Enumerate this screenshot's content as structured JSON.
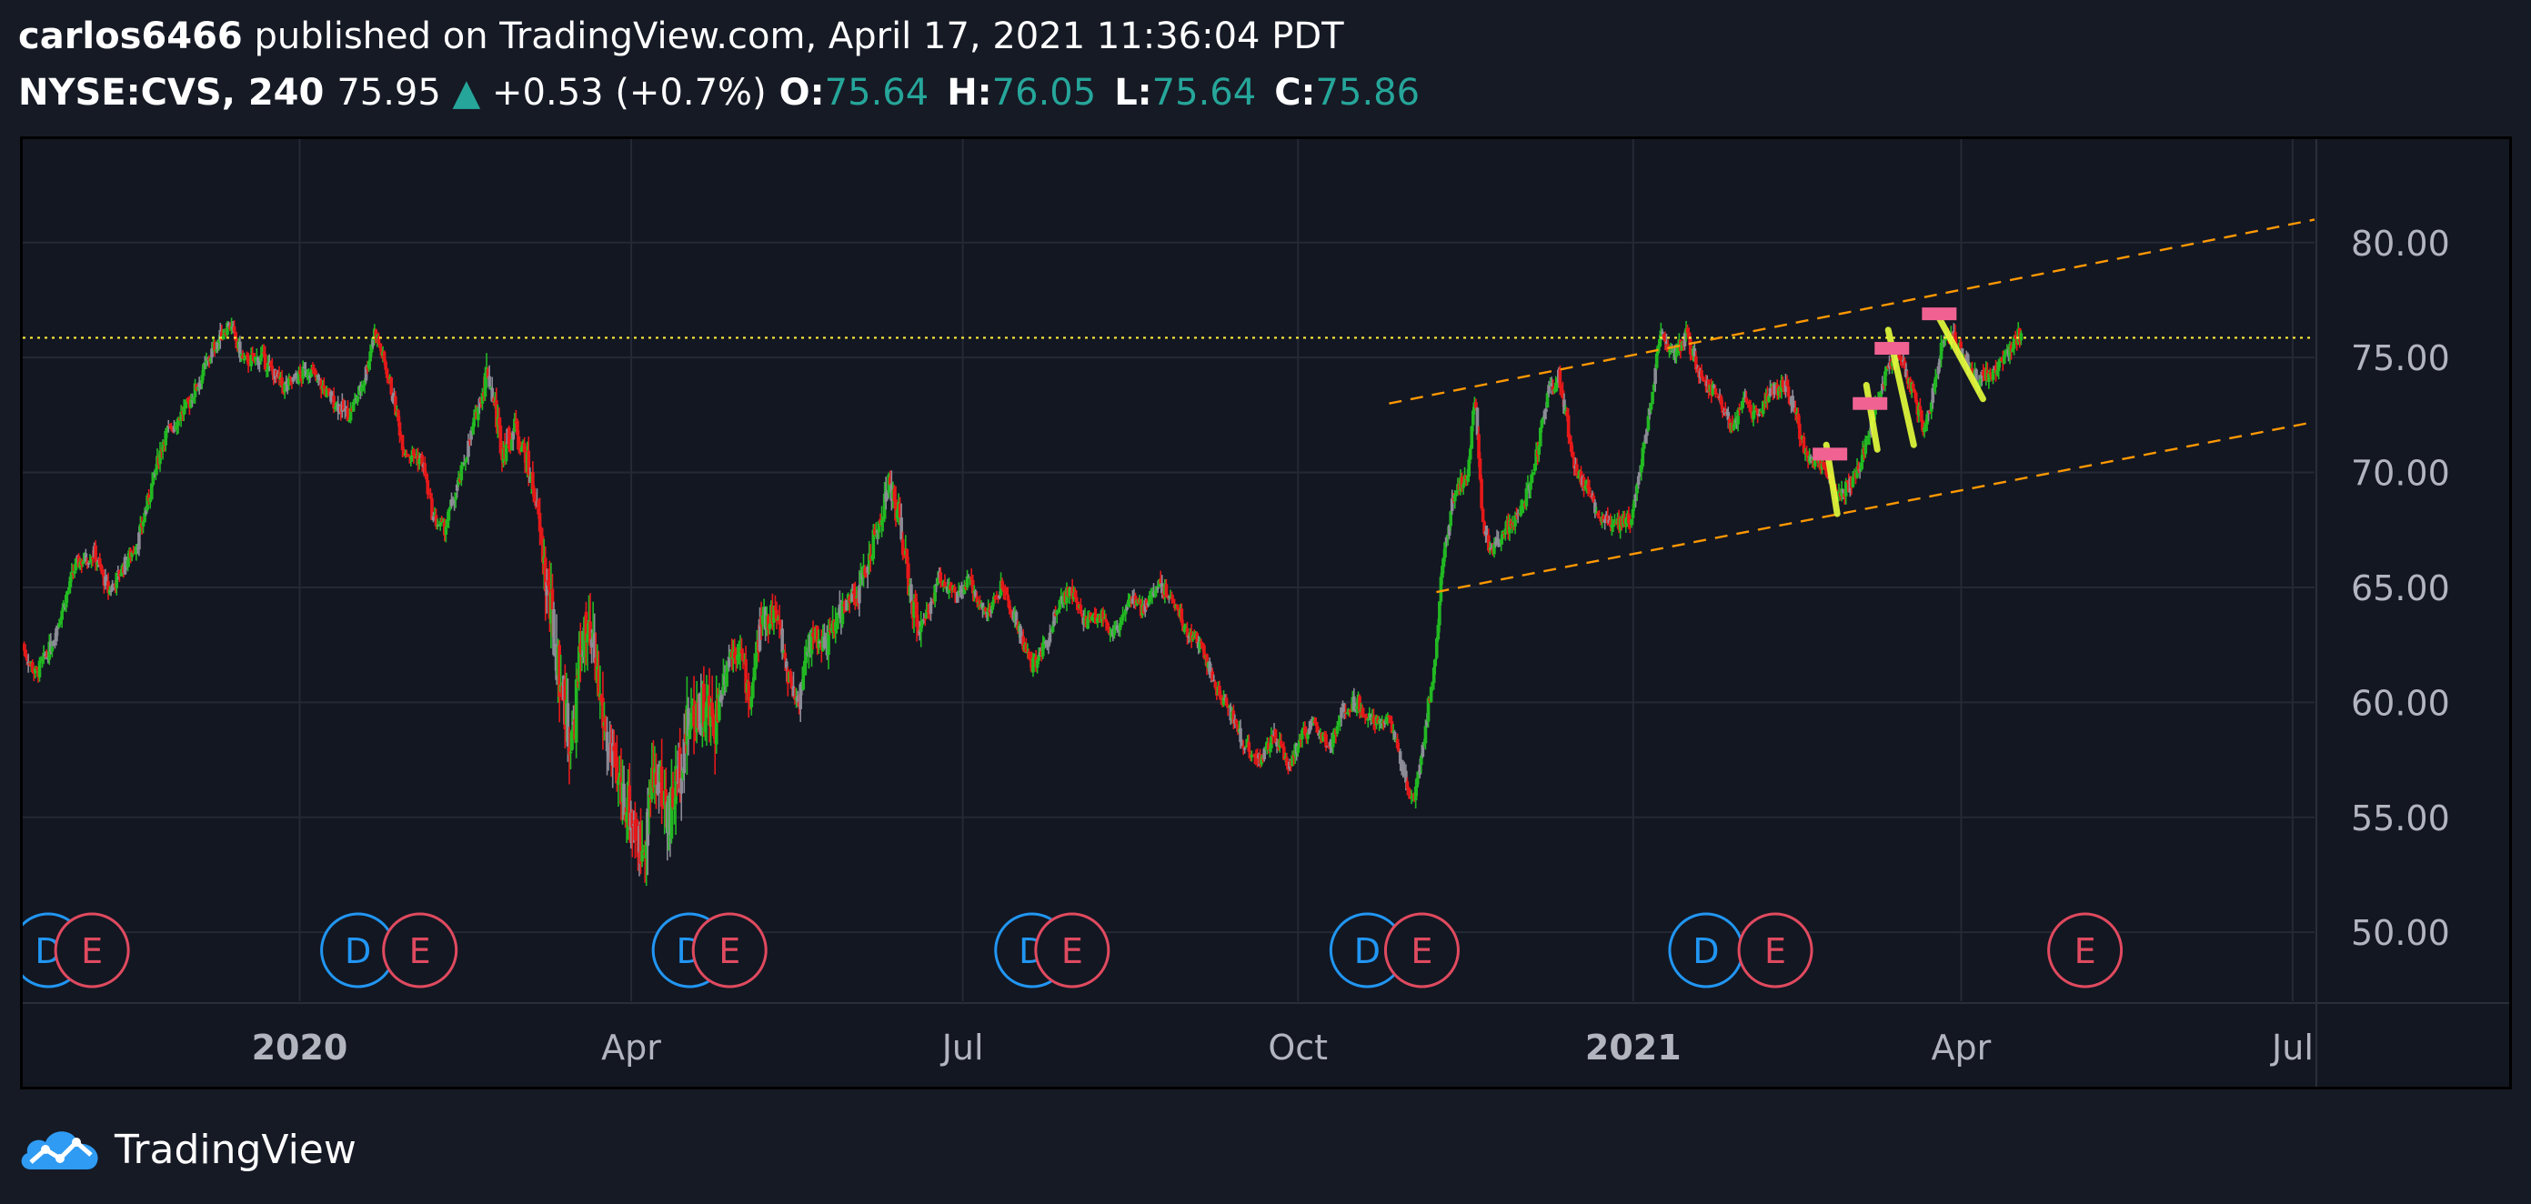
{
  "header": {
    "author": "carlos6466",
    "published_text": "published on TradingView.com, April 17, 2021 11:36:04 PDT",
    "symbol": "NYSE:CVS, 240",
    "last_price": "75.95",
    "change_arrow": "▲",
    "change": "+0.53 (+0.7%)",
    "open_label": "O:",
    "open_value": "75.64",
    "high_label": "H:",
    "high_value": "76.05",
    "low_label": "L:",
    "low_value": "75.64",
    "close_label": "C:",
    "close_value": "75.86"
  },
  "footer": {
    "brand": "TradingView",
    "logo_icon": "tradingview-cloud-logo-icon"
  },
  "colors": {
    "background": "#131722",
    "page_background": "#161a25",
    "up_candle": "#22b922",
    "down_candle": "#e61919",
    "grey_candle": "#8c8c96",
    "channel_line": "#ff9800",
    "level_line": "#ffeb3b",
    "teal_text": "#26a69a",
    "dividend_badge": "#2196f3",
    "earnings_badge": "#e04a5f",
    "pattern_marker": "#f06292",
    "pattern_stroke": "#e6ff3c"
  },
  "chart_data": {
    "type": "candlestick",
    "timeframe": "240",
    "ylim": [
      47.0,
      84.5
    ],
    "xlim": [
      "2019-10-17",
      "2021-07-07"
    ],
    "y_ticks": [
      "80.00",
      "75.00",
      "70.00",
      "65.00",
      "60.00",
      "55.00",
      "50.00"
    ],
    "y_tick_values": [
      80,
      75,
      70,
      65,
      60,
      55,
      50
    ],
    "x_ticks": [
      {
        "label": "2020",
        "date": "2020-01-01",
        "bold": true
      },
      {
        "label": "Apr",
        "date": "2020-04-01",
        "bold": false
      },
      {
        "label": "Jul",
        "date": "2020-07-01",
        "bold": false
      },
      {
        "label": "Oct",
        "date": "2020-10-01",
        "bold": false
      },
      {
        "label": "2021",
        "date": "2021-01-01",
        "bold": true
      },
      {
        "label": "Apr",
        "date": "2021-04-01",
        "bold": false
      },
      {
        "label": "Jul",
        "date": "2021-07-01",
        "bold": false
      }
    ],
    "price_path": [
      [
        "2019-10-17",
        62.5
      ],
      [
        "2019-10-21",
        61.2
      ],
      [
        "2019-10-25",
        62.4
      ],
      [
        "2019-11-01",
        66.0
      ],
      [
        "2019-11-06",
        66.5
      ],
      [
        "2019-11-10",
        64.8
      ],
      [
        "2019-11-18",
        67.0
      ],
      [
        "2019-11-25",
        71.5
      ],
      [
        "2019-12-02",
        73.0
      ],
      [
        "2019-12-09",
        75.5
      ],
      [
        "2019-12-13",
        76.5
      ],
      [
        "2019-12-17",
        74.8
      ],
      [
        "2019-12-22",
        75.0
      ],
      [
        "2019-12-28",
        73.7
      ],
      [
        "2020-01-04",
        74.5
      ],
      [
        "2020-01-10",
        73.2
      ],
      [
        "2020-01-15",
        72.5
      ],
      [
        "2020-01-19",
        74.0
      ],
      [
        "2020-01-22",
        76.2
      ],
      [
        "2020-01-26",
        74.0
      ],
      [
        "2020-01-30",
        71.0
      ],
      [
        "2020-02-04",
        70.5
      ],
      [
        "2020-02-07",
        68.0
      ],
      [
        "2020-02-10",
        67.5
      ],
      [
        "2020-02-14",
        69.5
      ],
      [
        "2020-02-18",
        72.0
      ],
      [
        "2020-02-22",
        74.5
      ],
      [
        "2020-02-26",
        71.0
      ],
      [
        "2020-03-01",
        72.0
      ],
      [
        "2020-03-06",
        69.0
      ],
      [
        "2020-03-10",
        64.0
      ],
      [
        "2020-03-13",
        61.0
      ],
      [
        "2020-03-16",
        58.0
      ],
      [
        "2020-03-19",
        63.0
      ],
      [
        "2020-03-22",
        62.0
      ],
      [
        "2020-03-25",
        59.0
      ],
      [
        "2020-03-28",
        56.5
      ],
      [
        "2020-04-01",
        55.5
      ],
      [
        "2020-04-04",
        53.5
      ],
      [
        "2020-04-08",
        57.0
      ],
      [
        "2020-04-12",
        55.0
      ],
      [
        "2020-04-16",
        58.5
      ],
      [
        "2020-04-20",
        60.0
      ],
      [
        "2020-04-24",
        59.0
      ],
      [
        "2020-04-28",
        62.0
      ],
      [
        "2020-05-01",
        62.5
      ],
      [
        "2020-05-04",
        60.0
      ],
      [
        "2020-05-07",
        63.5
      ],
      [
        "2020-05-11",
        64.0
      ],
      [
        "2020-05-14",
        61.5
      ],
      [
        "2020-05-17",
        60.0
      ],
      [
        "2020-05-21",
        63.0
      ],
      [
        "2020-05-25",
        62.5
      ],
      [
        "2020-05-29",
        64.0
      ],
      [
        "2020-06-02",
        64.5
      ],
      [
        "2020-06-05",
        66.0
      ],
      [
        "2020-06-08",
        67.5
      ],
      [
        "2020-06-11",
        69.5
      ],
      [
        "2020-06-14",
        68.0
      ],
      [
        "2020-06-17",
        64.5
      ],
      [
        "2020-06-20",
        63.0
      ],
      [
        "2020-06-25",
        65.5
      ],
      [
        "2020-06-30",
        64.5
      ],
      [
        "2020-07-03",
        65.3
      ],
      [
        "2020-07-08",
        63.8
      ],
      [
        "2020-07-12",
        65.0
      ],
      [
        "2020-07-16",
        63.5
      ],
      [
        "2020-07-20",
        61.5
      ],
      [
        "2020-07-24",
        62.5
      ],
      [
        "2020-07-28",
        64.5
      ],
      [
        "2020-07-31",
        64.8
      ],
      [
        "2020-08-04",
        63.5
      ],
      [
        "2020-08-08",
        63.8
      ],
      [
        "2020-08-12",
        63.0
      ],
      [
        "2020-08-16",
        64.5
      ],
      [
        "2020-08-20",
        64.0
      ],
      [
        "2020-08-24",
        65.2
      ],
      [
        "2020-08-28",
        64.5
      ],
      [
        "2020-09-01",
        63.0
      ],
      [
        "2020-09-05",
        62.5
      ],
      [
        "2020-09-09",
        60.5
      ],
      [
        "2020-09-13",
        59.5
      ],
      [
        "2020-09-17",
        58.0
      ],
      [
        "2020-09-21",
        57.5
      ],
      [
        "2020-09-25",
        58.5
      ],
      [
        "2020-09-29",
        57.2
      ],
      [
        "2020-10-02",
        58.5
      ],
      [
        "2020-10-06",
        59.0
      ],
      [
        "2020-10-10",
        58.0
      ],
      [
        "2020-10-14",
        59.8
      ],
      [
        "2020-10-18",
        60.0
      ],
      [
        "2020-10-22",
        59.0
      ],
      [
        "2020-10-26",
        59.5
      ],
      [
        "2020-10-30",
        57.0
      ],
      [
        "2020-11-02",
        55.8
      ],
      [
        "2020-11-05",
        58.5
      ],
      [
        "2020-11-08",
        62.0
      ],
      [
        "2020-11-10",
        66.0
      ],
      [
        "2020-11-13",
        69.0
      ],
      [
        "2020-11-17",
        70.0
      ],
      [
        "2020-11-19",
        73.5
      ],
      [
        "2020-11-21",
        68.0
      ],
      [
        "2020-11-23",
        66.5
      ],
      [
        "2020-11-27",
        67.5
      ],
      [
        "2020-12-01",
        68.0
      ],
      [
        "2020-12-05",
        70.0
      ],
      [
        "2020-12-09",
        73.5
      ],
      [
        "2020-12-12",
        74.2
      ],
      [
        "2020-12-16",
        70.5
      ],
      [
        "2020-12-20",
        69.0
      ],
      [
        "2020-12-24",
        68.0
      ],
      [
        "2020-12-28",
        67.8
      ],
      [
        "2021-01-01",
        68.0
      ],
      [
        "2021-01-05",
        72.0
      ],
      [
        "2021-01-09",
        76.0
      ],
      [
        "2021-01-12",
        75.0
      ],
      [
        "2021-01-16",
        76.0
      ],
      [
        "2021-01-20",
        74.0
      ],
      [
        "2021-01-24",
        73.5
      ],
      [
        "2021-01-28",
        72.0
      ],
      [
        "2021-02-01",
        73.0
      ],
      [
        "2021-02-04",
        72.5
      ],
      [
        "2021-02-08",
        73.5
      ],
      [
        "2021-02-12",
        73.8
      ],
      [
        "2021-02-15",
        72.5
      ],
      [
        "2021-02-18",
        70.5
      ],
      [
        "2021-02-21",
        70.5
      ],
      [
        "2021-02-24",
        69.5
      ],
      [
        "2021-02-27",
        69.0
      ],
      [
        "2021-03-02",
        69.5
      ],
      [
        "2021-03-05",
        70.5
      ],
      [
        "2021-03-09",
        73.0
      ],
      [
        "2021-03-12",
        74.5
      ],
      [
        "2021-03-15",
        75.3
      ],
      [
        "2021-03-19",
        73.5
      ],
      [
        "2021-03-22",
        72.0
      ],
      [
        "2021-03-24",
        73.0
      ],
      [
        "2021-03-27",
        75.5
      ],
      [
        "2021-03-30",
        76.0
      ],
      [
        "2021-04-02",
        75.0
      ],
      [
        "2021-04-06",
        74.0
      ],
      [
        "2021-04-09",
        74.2
      ],
      [
        "2021-04-12",
        74.8
      ],
      [
        "2021-04-15",
        75.5
      ],
      [
        "2021-04-17",
        75.95
      ]
    ],
    "level_line": {
      "price": 75.86,
      "style": "dotted"
    },
    "channel": {
      "upper": [
        [
          "2020-10-26",
          73.0
        ],
        [
          "2021-07-07",
          81.0
        ]
      ],
      "lower": [
        [
          "2020-11-08",
          64.8
        ],
        [
          "2021-07-07",
          72.2
        ]
      ]
    },
    "pattern_markers": [
      {
        "date": "2021-02-24",
        "price": 70.8
      },
      {
        "date": "2021-03-07",
        "price": 73.0
      },
      {
        "date": "2021-03-13",
        "price": 75.4
      },
      {
        "date": "2021-03-26",
        "price": 76.9
      }
    ],
    "pattern_strokes": [
      [
        [
          "2021-02-23",
          71.2
        ],
        [
          "2021-02-26",
          68.2
        ]
      ],
      [
        [
          "2021-03-06",
          73.8
        ],
        [
          "2021-03-09",
          71.0
        ]
      ],
      [
        [
          "2021-03-12",
          76.2
        ],
        [
          "2021-03-19",
          71.2
        ]
      ],
      [
        [
          "2021-03-25",
          77.0
        ],
        [
          "2021-04-07",
          73.2
        ]
      ]
    ],
    "events": [
      {
        "type": "D",
        "date": "2019-10-24"
      },
      {
        "type": "E",
        "date": "2019-11-05"
      },
      {
        "type": "D",
        "date": "2020-01-17"
      },
      {
        "type": "E",
        "date": "2020-02-03"
      },
      {
        "type": "D",
        "date": "2020-04-17"
      },
      {
        "type": "E",
        "date": "2020-04-28"
      },
      {
        "type": "D",
        "date": "2020-07-20"
      },
      {
        "type": "E",
        "date": "2020-07-31"
      },
      {
        "type": "D",
        "date": "2020-10-20"
      },
      {
        "type": "E",
        "date": "2020-11-04"
      },
      {
        "type": "D",
        "date": "2021-01-21"
      },
      {
        "type": "E",
        "date": "2021-02-09"
      },
      {
        "type": "E",
        "date": "2021-05-05"
      }
    ]
  }
}
